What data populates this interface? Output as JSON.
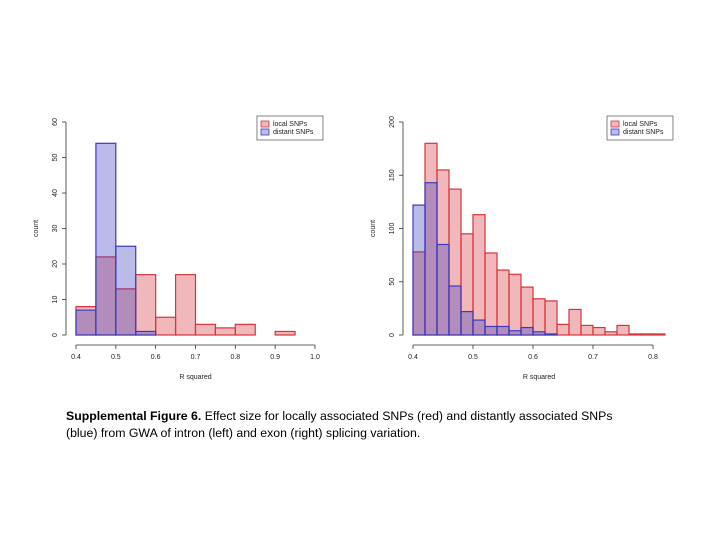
{
  "chart_data": [
    {
      "type": "histogram",
      "xlabel": "R squared",
      "ylabel": "count",
      "bins": [
        0.4,
        0.45,
        0.5,
        0.55,
        0.6,
        0.65,
        0.7,
        0.75,
        0.8,
        0.85,
        0.9,
        0.95
      ],
      "series": [
        {
          "name": "local SNPs",
          "color": "#d8343c",
          "values": [
            8,
            22,
            13,
            17,
            5,
            17,
            3,
            2,
            3,
            0,
            1
          ]
        },
        {
          "name": "distant SNPs",
          "color": "#3c3cc0",
          "values": [
            7,
            54,
            25,
            1,
            0,
            0,
            0,
            0,
            0,
            0,
            0
          ]
        }
      ],
      "xlim": [
        0.4,
        1.0
      ],
      "xticks": [
        0.4,
        0.5,
        0.6,
        0.7,
        0.8,
        0.9,
        {
          "value": 1.0,
          "label": "1.0"
        }
      ],
      "ylim": [
        0,
        60
      ],
      "yticks": [
        0,
        10,
        20,
        30,
        40,
        50,
        60
      ],
      "legend": "topright"
    },
    {
      "type": "histogram",
      "xlabel": "R squared",
      "ylabel": "count",
      "bins": [
        0.4,
        0.42,
        0.44,
        0.46,
        0.48,
        0.5,
        0.52,
        0.54,
        0.56,
        0.58,
        0.6,
        0.62,
        0.64,
        0.66,
        0.68,
        0.7,
        0.72,
        0.74,
        0.76,
        0.78,
        0.8,
        0.82
      ],
      "series": [
        {
          "name": "local SNPs",
          "color": "#d8343c",
          "values": [
            78,
            180,
            155,
            137,
            95,
            113,
            77,
            61,
            57,
            45,
            34,
            32,
            10,
            24,
            9,
            7,
            3,
            9,
            1,
            1,
            1
          ]
        },
        {
          "name": "distant SNPs",
          "color": "#3c3cc0",
          "values": [
            122,
            143,
            85,
            46,
            22,
            14,
            8,
            8,
            4,
            7,
            3,
            1,
            0,
            0,
            0,
            0,
            0,
            0,
            0,
            0,
            0
          ]
        }
      ],
      "xlim": [
        0.4,
        0.82
      ],
      "xticks": [
        0.4,
        0.5,
        0.6,
        0.7,
        0.8
      ],
      "ylim": [
        0,
        200
      ],
      "yticks": [
        0,
        50,
        100,
        150,
        200
      ],
      "legend": "topright"
    }
  ],
  "caption": {
    "label": "Supplemental Figure 6.",
    "text": "Effect size for locally associated SNPs (red) and distantly associated SNPs (blue) from GWA of intron (left) and exon (right) splicing variation."
  }
}
